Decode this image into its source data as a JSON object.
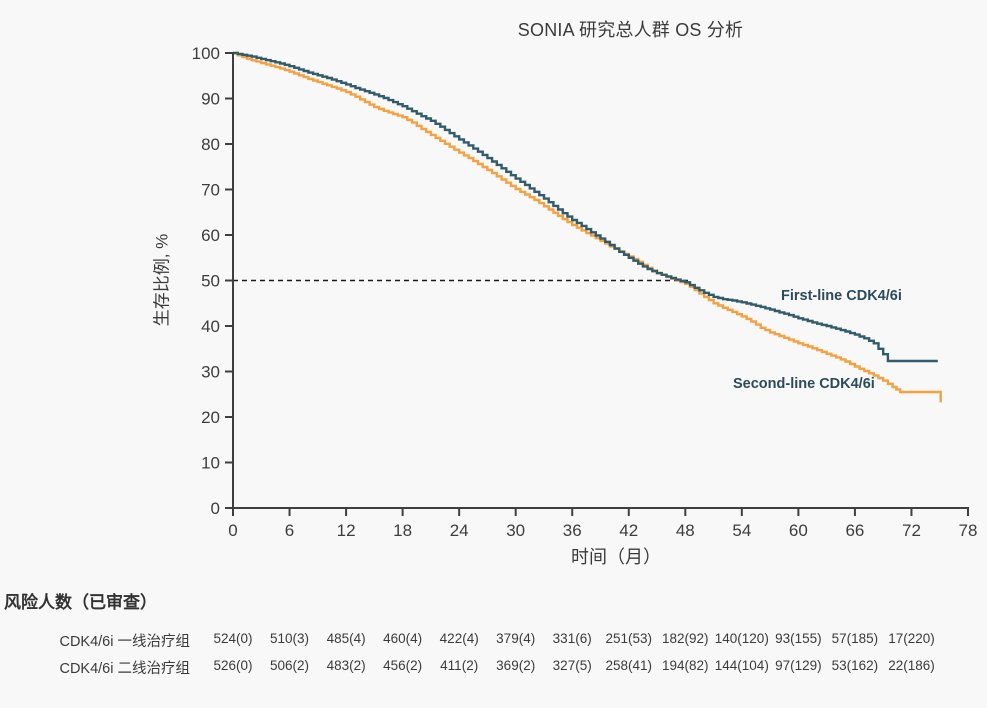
{
  "chart_data": {
    "type": "line",
    "subtype": "kaplan-meier",
    "title": "SONIA 研究总人群 OS 分析",
    "xlabel": "时间（月）",
    "ylabel": "生存比例, %",
    "xlim": [
      0,
      78
    ],
    "ylim": [
      0,
      100
    ],
    "x_ticks": [
      0,
      6,
      12,
      18,
      24,
      30,
      36,
      42,
      48,
      54,
      60,
      66,
      72,
      78
    ],
    "y_ticks": [
      0,
      10,
      20,
      30,
      40,
      50,
      60,
      70,
      80,
      90,
      100
    ],
    "grid": false,
    "legend_position": "curve-annotations",
    "reference_line": {
      "y": 50,
      "x_start": 0,
      "x_end": 48.3,
      "style": "dashed",
      "color": "#1b1b1b"
    },
    "series": [
      {
        "name": "First-line CDK4/6i",
        "color": "#325B6B",
        "points": [
          [
            0,
            100
          ],
          [
            0.5,
            99.8
          ],
          [
            1,
            99.6
          ],
          [
            2,
            99.2
          ],
          [
            3,
            98.7
          ],
          [
            4,
            98.2
          ],
          [
            5,
            97.7
          ],
          [
            6,
            97.1
          ],
          [
            7,
            96.4
          ],
          [
            8,
            95.7
          ],
          [
            9,
            95.1
          ],
          [
            10,
            94.5
          ],
          [
            11,
            93.8
          ],
          [
            12,
            93.1
          ],
          [
            13,
            92.3
          ],
          [
            14,
            91.6
          ],
          [
            15,
            90.9
          ],
          [
            16,
            90.1
          ],
          [
            17,
            89.2
          ],
          [
            18,
            88.3
          ],
          [
            19,
            87.2
          ],
          [
            20,
            86.1
          ],
          [
            21,
            85.1
          ],
          [
            22,
            83.8
          ],
          [
            23,
            82.4
          ],
          [
            24,
            81.0
          ],
          [
            25,
            79.7
          ],
          [
            26,
            78.3
          ],
          [
            27,
            76.9
          ],
          [
            28,
            75.4
          ],
          [
            29,
            73.9
          ],
          [
            30,
            72.4
          ],
          [
            31,
            71.0
          ],
          [
            32,
            69.5
          ],
          [
            33,
            68.0
          ],
          [
            34,
            66.4
          ],
          [
            35,
            64.8
          ],
          [
            36,
            63.3
          ],
          [
            37,
            62.0
          ],
          [
            38,
            60.6
          ],
          [
            39,
            59.2
          ],
          [
            40,
            57.8
          ],
          [
            41,
            56.3
          ],
          [
            42,
            55.0
          ],
          [
            43,
            53.7
          ],
          [
            44,
            52.5
          ],
          [
            45,
            51.6
          ],
          [
            46,
            50.9
          ],
          [
            47,
            50.2
          ],
          [
            48,
            49.6
          ],
          [
            49,
            48.4
          ],
          [
            50,
            47.3
          ],
          [
            51,
            46.4
          ],
          [
            52,
            45.9
          ],
          [
            53,
            45.6
          ],
          [
            54,
            45.2
          ],
          [
            55,
            44.7
          ],
          [
            56,
            44.2
          ],
          [
            57,
            43.6
          ],
          [
            58,
            43.0
          ],
          [
            59,
            42.4
          ],
          [
            60,
            41.7
          ],
          [
            61,
            41.1
          ],
          [
            62,
            40.5
          ],
          [
            63,
            40.0
          ],
          [
            64,
            39.4
          ],
          [
            65,
            38.8
          ],
          [
            66,
            38.1
          ],
          [
            67,
            37.3
          ],
          [
            68,
            36.2
          ],
          [
            69,
            33.8
          ],
          [
            69.5,
            32.3
          ],
          [
            74.8,
            32.3
          ]
        ]
      },
      {
        "name": "Second-line CDK4/6i",
        "color": "#F5A140",
        "points": [
          [
            0,
            100
          ],
          [
            0.5,
            99.5
          ],
          [
            1,
            99.1
          ],
          [
            2,
            98.4
          ],
          [
            3,
            97.8
          ],
          [
            4,
            97.2
          ],
          [
            5,
            96.6
          ],
          [
            6,
            95.9
          ],
          [
            7,
            95.1
          ],
          [
            8,
            94.3
          ],
          [
            9,
            93.6
          ],
          [
            10,
            92.9
          ],
          [
            11,
            92.2
          ],
          [
            12,
            91.4
          ],
          [
            13,
            90.4
          ],
          [
            14,
            89.2
          ],
          [
            15,
            88.1
          ],
          [
            16,
            87.3
          ],
          [
            17,
            86.6
          ],
          [
            18,
            85.9
          ],
          [
            19,
            84.7
          ],
          [
            20,
            83.3
          ],
          [
            21,
            82.0
          ],
          [
            22,
            80.7
          ],
          [
            23,
            79.4
          ],
          [
            24,
            78.1
          ],
          [
            25,
            76.9
          ],
          [
            26,
            75.6
          ],
          [
            27,
            74.3
          ],
          [
            28,
            72.9
          ],
          [
            29,
            71.5
          ],
          [
            30,
            70.1
          ],
          [
            31,
            68.9
          ],
          [
            32,
            67.7
          ],
          [
            33,
            66.3
          ],
          [
            34,
            64.9
          ],
          [
            35,
            63.5
          ],
          [
            36,
            62.2
          ],
          [
            37,
            61.0
          ],
          [
            38,
            59.9
          ],
          [
            39,
            58.7
          ],
          [
            40,
            57.5
          ],
          [
            41,
            56.4
          ],
          [
            42,
            55.3
          ],
          [
            43,
            54.1
          ],
          [
            44,
            52.8
          ],
          [
            45,
            51.7
          ],
          [
            46,
            50.8
          ],
          [
            47,
            50.0
          ],
          [
            48,
            49.3
          ],
          [
            49,
            47.9
          ],
          [
            50,
            46.4
          ],
          [
            51,
            45.0
          ],
          [
            52,
            44.0
          ],
          [
            53,
            43.1
          ],
          [
            54,
            42.1
          ],
          [
            55,
            41.0
          ],
          [
            56,
            39.6
          ],
          [
            57,
            38.6
          ],
          [
            58,
            37.8
          ],
          [
            59,
            37.0
          ],
          [
            60,
            36.2
          ],
          [
            61,
            35.5
          ],
          [
            62,
            34.7
          ],
          [
            63,
            33.9
          ],
          [
            64,
            33.1
          ],
          [
            65,
            32.2
          ],
          [
            66,
            31.1
          ],
          [
            67,
            30.1
          ],
          [
            68,
            29.1
          ],
          [
            69,
            28.0
          ],
          [
            70,
            26.6
          ],
          [
            70.8,
            25.5
          ],
          [
            74.9,
            25.5
          ],
          [
            75.1,
            23.2
          ]
        ]
      }
    ],
    "annotations": [
      {
        "text": "First-line CDK4/6i"
      },
      {
        "text": "Second-line CDK4/6i"
      }
    ]
  },
  "risk_table": {
    "header": "风险人数（已审查）",
    "time_points": [
      0,
      6,
      12,
      18,
      24,
      30,
      36,
      42,
      48,
      54,
      60,
      66,
      72
    ],
    "rows": [
      {
        "label": "CDK4/6i 一线治疗组",
        "values": [
          "524(0)",
          "510(3)",
          "485(4)",
          "460(4)",
          "422(4)",
          "379(4)",
          "331(6)",
          "251(53)",
          "182(92)",
          "140(120)",
          "93(155)",
          "57(185)",
          "17(220)"
        ]
      },
      {
        "label": "CDK4/6i 二线治疗组",
        "values": [
          "526(0)",
          "506(2)",
          "483(2)",
          "456(2)",
          "411(2)",
          "369(2)",
          "327(5)",
          "258(41)",
          "194(82)",
          "144(104)",
          "97(129)",
          "53(162)",
          "22(186)"
        ]
      }
    ]
  },
  "colors": {
    "background": "#F8F8F8",
    "axis": "#3F3F3F",
    "tick_text": "#3D3D3D",
    "title_text": "#3A3A3A",
    "first_line": "#325B6B",
    "second_line": "#F5A140",
    "annotation_text": "#2B4A5A",
    "reference_line": "#1B1B1B"
  }
}
